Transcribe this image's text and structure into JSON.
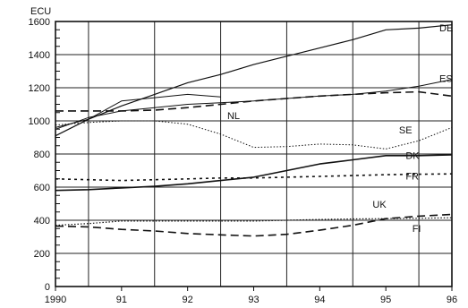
{
  "chart_data": {
    "type": "line",
    "unit_label": "ECU",
    "x": [
      1990,
      1990.5,
      1991,
      1991.5,
      1992,
      1992.5,
      1993,
      1993.5,
      1994,
      1994.5,
      1995,
      1995.5,
      1996
    ],
    "x_tick_labels": [
      "1990",
      "91",
      "92",
      "93",
      "94",
      "95",
      "96"
    ],
    "x_tick_values": [
      1990,
      1991,
      1992,
      1993,
      1994,
      1995,
      1996
    ],
    "xlim": [
      1990,
      1996
    ],
    "ylim": [
      0,
      1600
    ],
    "y_ticks": [
      0,
      200,
      400,
      600,
      800,
      1000,
      1200,
      1400,
      1600
    ],
    "grid": true,
    "series": [
      {
        "name": "DE",
        "style": "solid",
        "color": "#111111",
        "width": 1.2,
        "values": [
          910,
          1010,
          1090,
          1160,
          1230,
          1280,
          1340,
          1390,
          1440,
          1490,
          1550,
          1560,
          1580
        ]
      },
      {
        "name": "ES",
        "style": "solid",
        "color": "#111111",
        "width": 1.0,
        "values": [
          950,
          1020,
          1060,
          1080,
          1100,
          1110,
          1120,
          1135,
          1150,
          1160,
          1180,
          1210,
          1250
        ]
      },
      {
        "name": "NL",
        "style": "solid",
        "color": "#111111",
        "width": 1.0,
        "values": [
          960,
          1010,
          1120,
          1140,
          1160,
          1145,
          null,
          null,
          null,
          null,
          null,
          null,
          null
        ]
      },
      {
        "name": "NL",
        "style": "dashed",
        "color": "#111111",
        "width": 1.6,
        "values": [
          1060,
          1060,
          1060,
          1065,
          1080,
          1100,
          1120,
          1135,
          1150,
          1160,
          1170,
          1175,
          1150
        ]
      },
      {
        "name": "SE",
        "style": "dotted",
        "color": "#111111",
        "width": 1.0,
        "values": [
          975,
          990,
          1000,
          1000,
          980,
          920,
          840,
          845,
          860,
          855,
          830,
          880,
          960
        ]
      },
      {
        "name": "DK",
        "style": "solid",
        "color": "#111111",
        "width": 1.6,
        "values": [
          580,
          585,
          595,
          605,
          620,
          640,
          660,
          700,
          740,
          765,
          790,
          790,
          795
        ]
      },
      {
        "name": "FR",
        "style": "dotted-heavy",
        "color": "#111111",
        "width": 1.6,
        "values": [
          650,
          645,
          640,
          645,
          650,
          655,
          655,
          660,
          665,
          670,
          675,
          678,
          680
        ]
      },
      {
        "name": "UK",
        "style": "dotted",
        "color": "#111111",
        "width": 1.2,
        "values": [
          370,
          380,
          395,
          395,
          395,
          395,
          395,
          400,
          405,
          408,
          410,
          412,
          415
        ]
      },
      {
        "name": "FI",
        "style": "dashed",
        "color": "#111111",
        "width": 1.6,
        "values": [
          365,
          360,
          345,
          335,
          320,
          312,
          305,
          315,
          340,
          370,
          410,
          425,
          435
        ]
      }
    ],
    "series_labels": [
      {
        "text": "DE",
        "x": 1996,
        "y": 1540
      },
      {
        "text": "ES",
        "x": 1996,
        "y": 1235
      },
      {
        "text": "NL",
        "x": 1992.6,
        "y": 1010
      },
      {
        "text": "SE",
        "x": 1995.2,
        "y": 925
      },
      {
        "text": "DK",
        "x": 1995.3,
        "y": 770
      },
      {
        "text": "FR",
        "x": 1995.3,
        "y": 645
      },
      {
        "text": "UK",
        "x": 1994.8,
        "y": 475
      },
      {
        "text": "FI",
        "x": 1995.4,
        "y": 330
      }
    ]
  }
}
